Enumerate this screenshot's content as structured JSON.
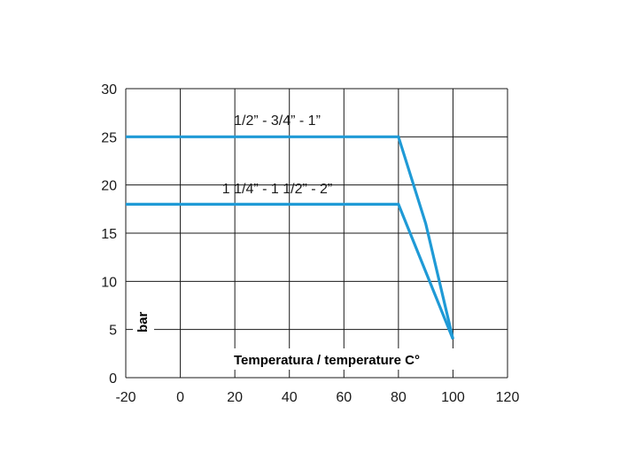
{
  "chart_data": {
    "type": "line",
    "title": "",
    "xlabel": "Temperatura / temperature C°",
    "ylabel": "bar",
    "xlim": [
      -20,
      120
    ],
    "ylim": [
      0,
      30
    ],
    "xticks": [
      -20,
      0,
      20,
      40,
      60,
      80,
      100,
      120
    ],
    "yticks": [
      0,
      5,
      10,
      15,
      20,
      25,
      30
    ],
    "grid": true,
    "legend": "none",
    "line_color": "#1f9ad6",
    "series": [
      {
        "name": "1/2” - 3/4” - 1”",
        "points": [
          [
            -20,
            25
          ],
          [
            80,
            25
          ],
          [
            90,
            16
          ],
          [
            100,
            4
          ]
        ]
      },
      {
        "name": "1 1/4” - 1 1/2” - 2”",
        "points": [
          [
            -20,
            18
          ],
          [
            80,
            18
          ],
          [
            100,
            4
          ]
        ]
      }
    ]
  }
}
